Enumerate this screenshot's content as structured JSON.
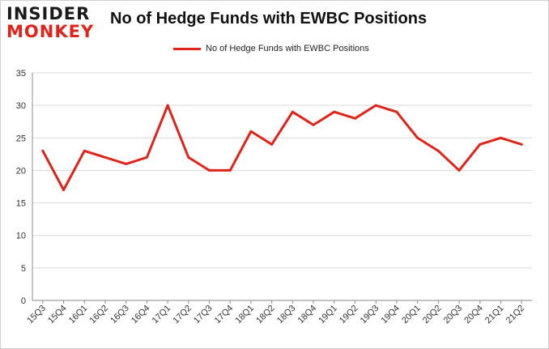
{
  "logo": {
    "line1": "INSIDER",
    "line2": "MONKEY"
  },
  "chart_data": {
    "type": "line",
    "title": "No of Hedge Funds with EWBC Positions",
    "xlabel": "",
    "ylabel": "",
    "ylim": [
      0,
      35
    ],
    "yticks": [
      0,
      5,
      10,
      15,
      20,
      25,
      30,
      35
    ],
    "grid": true,
    "legend_position": "top-center",
    "categories": [
      "15Q3",
      "15Q4",
      "16Q1",
      "16Q2",
      "16Q3",
      "16Q4",
      "17Q1",
      "17Q2",
      "17Q3",
      "17Q4",
      "18Q1",
      "18Q2",
      "18Q3",
      "18Q4",
      "19Q1",
      "19Q2",
      "19Q3",
      "19Q4",
      "20Q1",
      "20Q2",
      "20Q3",
      "20Q4",
      "21Q1",
      "21Q2"
    ],
    "series": [
      {
        "name": "No of Hedge Funds with EWBC Positions",
        "color": "#e2231a",
        "values": [
          23,
          17,
          23,
          22,
          21,
          22,
          30,
          22,
          20,
          20,
          26,
          24,
          29,
          27,
          29,
          28,
          30,
          29,
          25,
          23,
          20,
          24,
          25,
          24
        ]
      }
    ]
  }
}
